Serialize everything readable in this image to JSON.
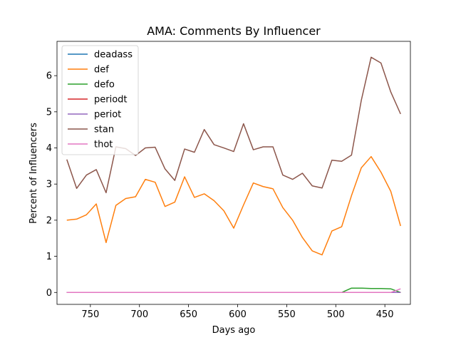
{
  "chart_data": {
    "type": "line",
    "title": "AMA: Comments By Influencer",
    "xlabel": "Days ago",
    "ylabel": "Percent of Influencers",
    "x_inverted": true,
    "xlim": [
      784,
      424
    ],
    "ylim": [
      -0.33,
      6.95
    ],
    "xticks": [
      750,
      700,
      650,
      600,
      550,
      500,
      450
    ],
    "yticks": [
      0,
      1,
      2,
      3,
      4,
      5,
      6
    ],
    "grid": false,
    "legend_position": "upper-left",
    "x": [
      774,
      764,
      754,
      744,
      734,
      724,
      714,
      704,
      694,
      684,
      674,
      664,
      654,
      644,
      634,
      624,
      614,
      604,
      594,
      584,
      574,
      564,
      554,
      544,
      534,
      524,
      514,
      504,
      494,
      484,
      474,
      464,
      454,
      444,
      434
    ],
    "series": [
      {
        "name": "deadass",
        "color": "#1f77b4",
        "values": [
          0,
          0,
          0,
          0,
          0,
          0,
          0,
          0,
          0,
          0,
          0,
          0,
          0,
          0,
          0,
          0,
          0,
          0,
          0,
          0,
          0,
          0,
          0,
          0,
          0,
          0,
          0,
          0,
          0,
          0,
          0,
          0,
          0,
          0,
          0
        ]
      },
      {
        "name": "def",
        "color": "#ff7f0e",
        "values": [
          2.0,
          2.03,
          2.15,
          2.45,
          1.38,
          2.41,
          2.6,
          2.65,
          3.13,
          3.05,
          2.38,
          2.5,
          3.2,
          2.63,
          2.73,
          2.54,
          2.26,
          1.78,
          2.42,
          3.03,
          2.93,
          2.87,
          2.35,
          2.0,
          1.52,
          1.15,
          1.04,
          1.7,
          1.82,
          2.68,
          3.45,
          3.76,
          3.33,
          2.8,
          1.84
        ]
      },
      {
        "name": "defo",
        "color": "#2ca02c",
        "values": [
          0,
          0,
          0,
          0,
          0,
          0,
          0,
          0,
          0,
          0,
          0,
          0,
          0,
          0,
          0,
          0,
          0,
          0,
          0,
          0,
          0,
          0,
          0,
          0,
          0,
          0,
          0,
          0,
          0,
          0.12,
          0.12,
          0.11,
          0.11,
          0.1,
          0.0
        ]
      },
      {
        "name": "periodt",
        "color": "#d62728",
        "values": [
          0,
          0,
          0,
          0,
          0,
          0,
          0,
          0,
          0,
          0,
          0,
          0,
          0,
          0,
          0,
          0,
          0,
          0,
          0,
          0,
          0,
          0,
          0,
          0,
          0,
          0,
          0,
          0,
          0,
          0,
          0,
          0,
          0,
          0,
          0
        ]
      },
      {
        "name": "periot",
        "color": "#9467bd",
        "values": [
          0,
          0,
          0,
          0,
          0,
          0,
          0,
          0,
          0,
          0,
          0,
          0,
          0,
          0,
          0,
          0,
          0,
          0,
          0,
          0,
          0,
          0,
          0,
          0,
          0,
          0,
          0,
          0,
          0,
          0,
          0,
          0,
          0,
          0,
          0
        ]
      },
      {
        "name": "stan",
        "color": "#8c564b",
        "values": [
          3.68,
          2.88,
          3.25,
          3.4,
          2.76,
          4.03,
          3.98,
          3.79,
          4.0,
          4.02,
          3.42,
          3.1,
          3.97,
          3.88,
          4.51,
          4.09,
          4.0,
          3.9,
          4.67,
          3.95,
          4.03,
          4.03,
          3.25,
          3.13,
          3.3,
          2.95,
          2.89,
          3.66,
          3.63,
          3.8,
          5.32,
          6.51,
          6.35,
          5.55,
          4.94
        ]
      },
      {
        "name": "thot",
        "color": "#e377c2",
        "values": [
          0,
          0,
          0,
          0,
          0,
          0,
          0,
          0,
          0,
          0,
          0,
          0,
          0,
          0,
          0,
          0,
          0,
          0,
          0,
          0,
          0,
          0,
          0,
          0,
          0,
          0,
          0,
          0,
          0,
          0,
          0,
          0,
          0,
          0,
          0.1
        ]
      }
    ]
  }
}
